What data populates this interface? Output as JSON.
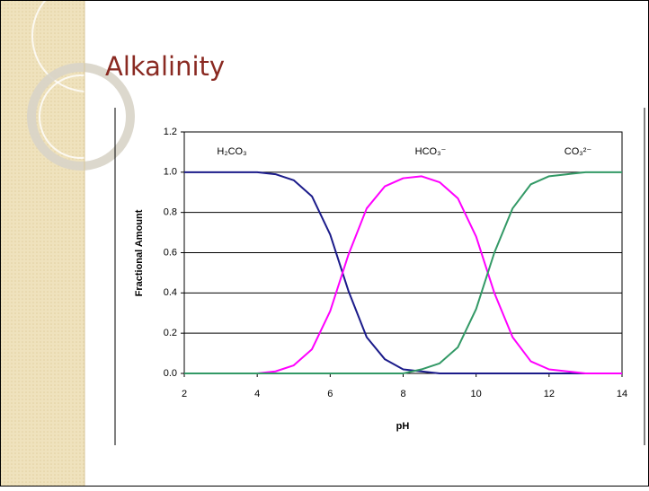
{
  "title": "Alkalinity",
  "chart_data": {
    "type": "line",
    "x_label": "pH",
    "y_label": "Fractional Amount",
    "x": [
      2,
      2.5,
      3,
      3.5,
      4,
      4.5,
      5,
      5.5,
      6,
      6.5,
      7,
      7.5,
      8,
      8.5,
      9,
      9.5,
      10,
      10.5,
      11,
      11.5,
      12,
      12.5,
      13,
      13.5,
      14
    ],
    "series": [
      {
        "name": "H₂CO₃",
        "color": "#1b1b8a",
        "values": [
          1,
          1,
          1,
          1,
          1,
          0.99,
          0.96,
          0.88,
          0.69,
          0.41,
          0.18,
          0.07,
          0.02,
          0.01,
          0,
          0,
          0,
          0,
          0,
          0,
          0,
          0,
          0,
          0,
          0
        ]
      },
      {
        "name": "HCO₃⁻",
        "color": "#ff00ff",
        "values": [
          0,
          0,
          0,
          0,
          0,
          0.01,
          0.04,
          0.12,
          0.31,
          0.59,
          0.82,
          0.93,
          0.97,
          0.98,
          0.95,
          0.87,
          0.68,
          0.4,
          0.18,
          0.06,
          0.02,
          0.01,
          0,
          0,
          0
        ]
      },
      {
        "name": "CO₃²⁻",
        "color": "#339966",
        "values": [
          0,
          0,
          0,
          0,
          0,
          0,
          0,
          0,
          0,
          0,
          0,
          0,
          0,
          0.02,
          0.05,
          0.13,
          0.32,
          0.6,
          0.82,
          0.94,
          0.98,
          0.99,
          1,
          1,
          1
        ]
      }
    ],
    "xlim": [
      2,
      14
    ],
    "xticks": [
      2,
      4,
      6,
      8,
      10,
      12,
      14
    ],
    "ylim": [
      0,
      1.2
    ],
    "yticks": [
      {
        "value": 0,
        "label": "0.0"
      },
      0.2,
      0.4,
      0.6,
      0.8,
      {
        "value": 1,
        "label": "1.0"
      },
      1.2
    ],
    "grid": true
  }
}
